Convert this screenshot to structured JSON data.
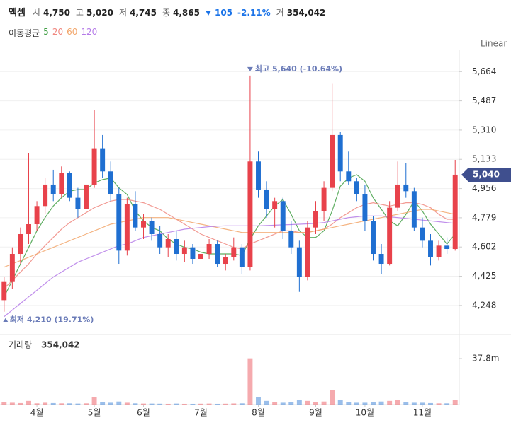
{
  "chart_data": {
    "type": "candlestick",
    "title": "엑셈",
    "quote": [
      {
        "label": "시",
        "value": "4,750"
      },
      {
        "label": "고",
        "value": "5,020"
      },
      {
        "label": "저",
        "value": "4,745"
      },
      {
        "label": "종",
        "value": "4,865"
      }
    ],
    "change": "105",
    "change_rate": "-2.11%",
    "volume_quote": {
      "label": "거",
      "value": "354,042"
    },
    "scale_label": "Linear",
    "categories": [
      null,
      null,
      null,
      null,
      "4월",
      null,
      null,
      null,
      null,
      null,
      null,
      "5월",
      null,
      null,
      null,
      null,
      null,
      "6월",
      null,
      null,
      null,
      null,
      null,
      null,
      "7월",
      null,
      null,
      null,
      null,
      null,
      null,
      "8월",
      null,
      null,
      null,
      null,
      null,
      null,
      "9월",
      null,
      null,
      null,
      null,
      null,
      "10월",
      null,
      null,
      null,
      null,
      null,
      null,
      "11월",
      null,
      null,
      null,
      null
    ],
    "open": [
      4280,
      4390,
      4560,
      4680,
      4740,
      4850,
      4980,
      4920,
      5050,
      4900,
      4830,
      4980,
      5200,
      5060,
      4920,
      4580,
      4860,
      4720,
      4760,
      4680,
      4600,
      4650,
      4560,
      4600,
      4530,
      4560,
      4620,
      4500,
      4540,
      4600,
      4480,
      5120,
      4950,
      4830,
      4880,
      4700,
      4600,
      4420,
      4720,
      4820,
      4960,
      5280,
      5060,
      5000,
      4920,
      4760,
      4560,
      4500,
      4840,
      4980,
      4940,
      4720,
      4640,
      4540,
      4610,
      4590
    ],
    "high": [
      4420,
      4600,
      4720,
      5170,
      4880,
      5020,
      5070,
      5090,
      5060,
      4960,
      5000,
      5430,
      5280,
      5120,
      4960,
      4900,
      4940,
      4800,
      4780,
      4730,
      4680,
      4700,
      4640,
      4620,
      4600,
      4650,
      4640,
      4560,
      4660,
      4620,
      5640,
      5180,
      5000,
      4900,
      4900,
      4760,
      4640,
      4760,
      4880,
      5000,
      5590,
      5300,
      5180,
      5020,
      4980,
      4790,
      4620,
      4880,
      5120,
      5110,
      4960,
      4780,
      4680,
      4640,
      4660,
      5130
    ],
    "low": [
      4210,
      4350,
      4500,
      4620,
      4700,
      4800,
      4880,
      4900,
      4880,
      4780,
      4800,
      4960,
      5020,
      4880,
      4500,
      4550,
      4700,
      4650,
      4640,
      4560,
      4540,
      4520,
      4510,
      4500,
      4460,
      4530,
      4480,
      4460,
      4520,
      4440,
      4460,
      4900,
      4780,
      4720,
      4650,
      4560,
      4330,
      4400,
      4680,
      4760,
      4940,
      5000,
      4980,
      4880,
      4700,
      4520,
      4440,
      4490,
      4820,
      4900,
      4700,
      4600,
      4490,
      4520,
      4560,
      4580
    ],
    "close": [
      4390,
      4560,
      4680,
      4740,
      4850,
      4980,
      4920,
      5050,
      4900,
      4830,
      4980,
      5200,
      5060,
      4920,
      4580,
      4860,
      4720,
      4760,
      4680,
      4600,
      4650,
      4560,
      4600,
      4530,
      4560,
      4620,
      4500,
      4540,
      4600,
      4480,
      5120,
      4950,
      4830,
      4880,
      4700,
      4600,
      4420,
      4720,
      4820,
      4960,
      5280,
      5060,
      5000,
      4920,
      4760,
      4560,
      4500,
      4840,
      4980,
      4940,
      4720,
      4640,
      4540,
      4610,
      4590,
      5040
    ],
    "up_color": "#e8424b",
    "down_color": "#1f6fd1",
    "ylim": [
      4106,
      5798
    ],
    "yticks": [
      {
        "value": 4248,
        "label": "4,248"
      },
      {
        "value": 4425,
        "label": "4,425"
      },
      {
        "value": 4602,
        "label": "4,602"
      },
      {
        "value": 4779,
        "label": "4,779"
      },
      {
        "value": 4956,
        "label": "4,956"
      },
      {
        "value": 5133,
        "label": "5,133"
      },
      {
        "value": 5310,
        "label": "5,310"
      },
      {
        "value": 5487,
        "label": "5,487"
      },
      {
        "value": 5664,
        "label": "5,664"
      }
    ],
    "grid": true,
    "last_price": {
      "value": 5040,
      "label": "5,040"
    },
    "annotations": {
      "high": "최고 5,640 (-10.64%)",
      "low": "최저 4,210 (19.71%)"
    },
    "moving_averages": {
      "label": "이동평균",
      "series": [
        {
          "name": "5",
          "color": "#43a047",
          "values": [
            4300,
            4400,
            4500,
            4600,
            4700,
            4780,
            4850,
            4900,
            4940,
            4950,
            4950,
            4990,
            5010,
            5020,
            4960,
            4920,
            4820,
            4760,
            4720,
            4700,
            4650,
            4620,
            4600,
            4590,
            4570,
            4560,
            4560,
            4560,
            4560,
            4550,
            4650,
            4730,
            4790,
            4850,
            4890,
            4800,
            4700,
            4660,
            4660,
            4700,
            4820,
            4970,
            5020,
            5040,
            5000,
            4900,
            4830,
            4760,
            4730,
            4800,
            4880,
            4820,
            4740,
            4680,
            4620,
            4680
          ]
        },
        {
          "name": "20",
          "color": "#f0877f",
          "values": [
            4350,
            4400,
            4450,
            4500,
            4560,
            4610,
            4660,
            4710,
            4750,
            4780,
            4810,
            4840,
            4860,
            4880,
            4890,
            4890,
            4880,
            4870,
            4850,
            4830,
            4800,
            4770,
            4740,
            4710,
            4680,
            4660,
            4640,
            4620,
            4600,
            4590,
            4620,
            4640,
            4660,
            4680,
            4700,
            4700,
            4690,
            4690,
            4700,
            4710,
            4740,
            4780,
            4810,
            4840,
            4860,
            4870,
            4860,
            4850,
            4860,
            4870,
            4870,
            4860,
            4840,
            4800,
            4770,
            4770
          ]
        },
        {
          "name": "60",
          "color": "#f2a66b",
          "values": [
            4480,
            4500,
            4520,
            4540,
            4560,
            4580,
            4600,
            4620,
            4640,
            4660,
            4680,
            4700,
            4720,
            4740,
            4750,
            4760,
            4770,
            4780,
            4780,
            4780,
            4780,
            4770,
            4760,
            4750,
            4740,
            4730,
            4720,
            4710,
            4700,
            4690,
            4690,
            4690,
            4690,
            4690,
            4690,
            4690,
            4690,
            4690,
            4700,
            4710,
            4720,
            4730,
            4740,
            4750,
            4760,
            4770,
            4780,
            4790,
            4800,
            4810,
            4820,
            4830,
            4830,
            4820,
            4810,
            4800
          ]
        },
        {
          "name": "120",
          "color": "#b57be8",
          "values": [
            4180,
            4220,
            4260,
            4300,
            4340,
            4380,
            4420,
            4450,
            4480,
            4510,
            4530,
            4550,
            4570,
            4590,
            4610,
            4620,
            4640,
            4660,
            4670,
            4680,
            4690,
            4700,
            4710,
            4715,
            4720,
            4725,
            4728,
            4730,
            4730,
            4730,
            4730,
            4730,
            4732,
            4734,
            4736,
            4738,
            4740,
            4742,
            4745,
            4750,
            4760,
            4770,
            4780,
            4785,
            4790,
            4790,
            4790,
            4785,
            4780,
            4775,
            4770,
            4765,
            4760,
            4755,
            4750,
            4745
          ]
        }
      ]
    },
    "volume": {
      "label": "거래량",
      "value_label": "354,042",
      "values": [
        2,
        1.5,
        1.2,
        3,
        1,
        1.5,
        1.2,
        1,
        1,
        0.8,
        1,
        6,
        2,
        1.5,
        2.5,
        1.5,
        1,
        0.8,
        0.8,
        0.7,
        0.6,
        0.8,
        0.6,
        0.6,
        0.7,
        0.8,
        0.6,
        0.7,
        0.9,
        1,
        38,
        6,
        3,
        2,
        1.5,
        2,
        4,
        3,
        2,
        2.5,
        12,
        4,
        2,
        1.5,
        1.5,
        2,
        2.5,
        3,
        4,
        2,
        1.5,
        1.5,
        1.2,
        1,
        1,
        3.5
      ],
      "ylim": [
        0,
        56.4
      ],
      "yticks": [
        {
          "value": 37.8,
          "label": "37.8m"
        }
      ]
    }
  }
}
